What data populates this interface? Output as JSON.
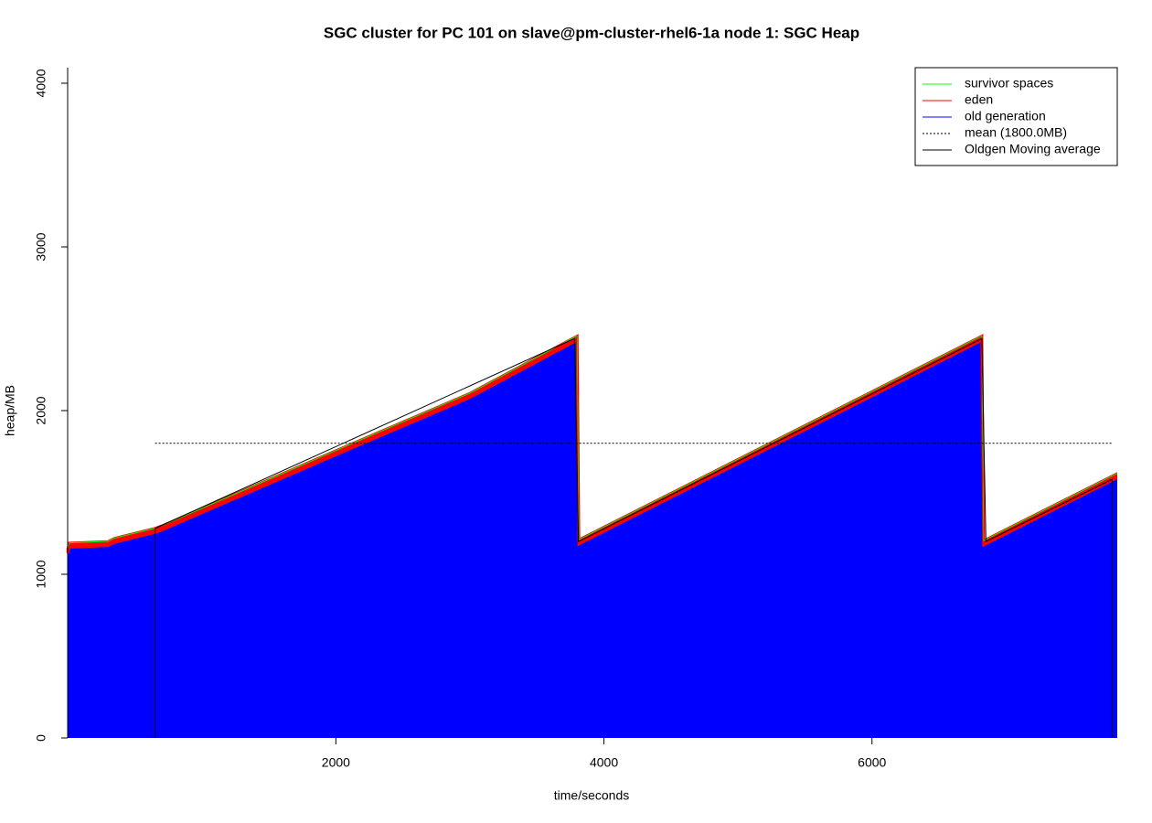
{
  "chart_data": {
    "type": "area",
    "title": "SGC cluster for PC 101 on slave@pm-cluster-rhel6-1a node 1: SGC Heap",
    "x_label": "time/seconds",
    "y_label": "heap/MB",
    "x": [
      0,
      10,
      300,
      350,
      650,
      700,
      2000,
      3000,
      3800,
      3813,
      6820,
      6833,
      7830
    ],
    "series": [
      {
        "name": "survivor spaces",
        "color": "#00ff00",
        "style": "area",
        "values": [
          3,
          3,
          3,
          3,
          3,
          3,
          3,
          3,
          3,
          3,
          3,
          3,
          3
        ]
      },
      {
        "name": "eden",
        "color": "#ff0000",
        "style": "area",
        "values": [
          25,
          25,
          25,
          25,
          25,
          25,
          25,
          25,
          25,
          25,
          25,
          25,
          25
        ]
      },
      {
        "name": "old generation",
        "color": "#0000ff",
        "style": "area",
        "values": [
          1130,
          1165,
          1175,
          1195,
          1255,
          1270,
          1730,
          2080,
          2430,
          1185,
          2430,
          1180,
          1590
        ]
      },
      {
        "name": "mean (1800.0MB)",
        "color": "#000000",
        "style": "dotted",
        "x": [
          651,
          7792
        ],
        "values": [
          1800,
          1800
        ]
      },
      {
        "name": "Oldgen Moving average",
        "color": "#000000",
        "style": "line",
        "x": [
          651,
          651,
          3780,
          3810,
          6820,
          6850,
          7792,
          7792
        ],
        "values": [
          0,
          1280,
          2440,
          1200,
          2440,
          1200,
          1580,
          0
        ]
      }
    ],
    "xlim": [
      -15,
      7830
    ],
    "ylim": [
      0,
      4095
    ],
    "xticks": [
      2000,
      4000,
      6000
    ],
    "yticks": [
      0,
      1000,
      2000,
      3000,
      4000
    ],
    "legend": "top-right"
  }
}
